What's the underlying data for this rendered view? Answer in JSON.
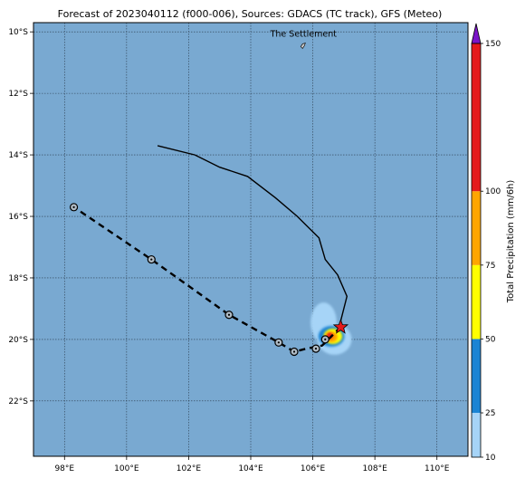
{
  "title": "Forecast of 2023040112 (f000-006), Sources: GDACS (TC track), GFS (Meteo)",
  "map": {
    "lon_range": [
      97,
      111
    ],
    "lat_range": [
      -23.8,
      -9.7
    ],
    "ocean_color": "#79a9d1",
    "grid": true,
    "x_ticks": [
      {
        "v": 98,
        "label": "98°E"
      },
      {
        "v": 100,
        "label": "100°E"
      },
      {
        "v": 102,
        "label": "102°E"
      },
      {
        "v": 104,
        "label": "104°E"
      },
      {
        "v": 106,
        "label": "106°E"
      },
      {
        "v": 108,
        "label": "108°E"
      },
      {
        "v": 110,
        "label": "110°E"
      }
    ],
    "y_ticks": [
      {
        "v": -10,
        "label": "10°S"
      },
      {
        "v": -12,
        "label": "12°S"
      },
      {
        "v": -14,
        "label": "14°S"
      },
      {
        "v": -16,
        "label": "16°S"
      },
      {
        "v": -18,
        "label": "18°S"
      },
      {
        "v": -20,
        "label": "20°S"
      },
      {
        "v": -22,
        "label": "22°S"
      }
    ],
    "place_label": "The Settlement",
    "place_position": [
      105.7,
      -10.45
    ]
  },
  "track": {
    "observed": [
      [
        101.0,
        -13.7
      ],
      [
        102.2,
        -14.0
      ],
      [
        103.0,
        -14.4
      ],
      [
        103.9,
        -14.7
      ],
      [
        104.8,
        -15.4
      ],
      [
        105.5,
        -16.0
      ],
      [
        106.2,
        -16.7
      ],
      [
        106.4,
        -17.4
      ],
      [
        106.8,
        -17.9
      ],
      [
        107.1,
        -18.6
      ],
      [
        106.9,
        -19.4
      ],
      [
        106.9,
        -19.6
      ]
    ],
    "forecast": [
      [
        106.9,
        -19.6
      ],
      [
        106.3,
        -20.2
      ],
      [
        105.8,
        -20.3
      ],
      [
        105.4,
        -20.4
      ],
      [
        104.9,
        -20.1
      ],
      [
        103.3,
        -19.2
      ],
      [
        100.8,
        -17.4
      ],
      [
        98.3,
        -15.7
      ]
    ],
    "forecast_points": [
      [
        106.4,
        -20.0
      ],
      [
        106.1,
        -20.3
      ],
      [
        105.4,
        -20.4
      ],
      [
        104.9,
        -20.1
      ],
      [
        103.3,
        -19.2
      ],
      [
        100.8,
        -17.4
      ],
      [
        98.3,
        -15.7
      ]
    ],
    "current_position": [
      106.9,
      -19.6
    ],
    "star_color": "#e41a1c"
  },
  "precipitation_cells": [
    {
      "level": 10,
      "color": "#a6d4f7",
      "center": [
        106.35,
        -19.45
      ],
      "radius": [
        0.42,
        0.65
      ]
    },
    {
      "level": 10,
      "color": "#a6d4f7",
      "center": [
        106.7,
        -20.0
      ],
      "radius": [
        0.55,
        0.5
      ]
    },
    {
      "level": 25,
      "color": "#1b84d4",
      "center": [
        106.6,
        -19.9
      ],
      "radius": [
        0.42,
        0.34
      ]
    },
    {
      "level": 50,
      "color": "#ffff00",
      "center": [
        106.65,
        -19.9
      ],
      "radius": [
        0.3,
        0.25
      ]
    },
    {
      "level": 75,
      "color": "#ffa500",
      "center": [
        106.6,
        -19.92
      ],
      "radius": [
        0.2,
        0.17
      ]
    },
    {
      "level": 100,
      "color": "#e41a1c",
      "center": [
        106.55,
        -19.88
      ],
      "radius": [
        0.1,
        0.1
      ]
    }
  ],
  "colorbar": {
    "label": "Total Precipitation (mm/6h)",
    "range": [
      10,
      150
    ],
    "ticks": [
      10,
      25,
      50,
      75,
      100,
      150
    ],
    "segments": [
      {
        "from": 10,
        "to": 25,
        "color": "#a6d4f7"
      },
      {
        "from": 25,
        "to": 50,
        "color": "#1b84d4"
      },
      {
        "from": 50,
        "to": 75,
        "color": "#ffff00"
      },
      {
        "from": 75,
        "to": 100,
        "color": "#ffa500"
      },
      {
        "from": 100,
        "to": 150,
        "color": "#e41a1c"
      }
    ],
    "extend_color": "#7b15c9"
  }
}
